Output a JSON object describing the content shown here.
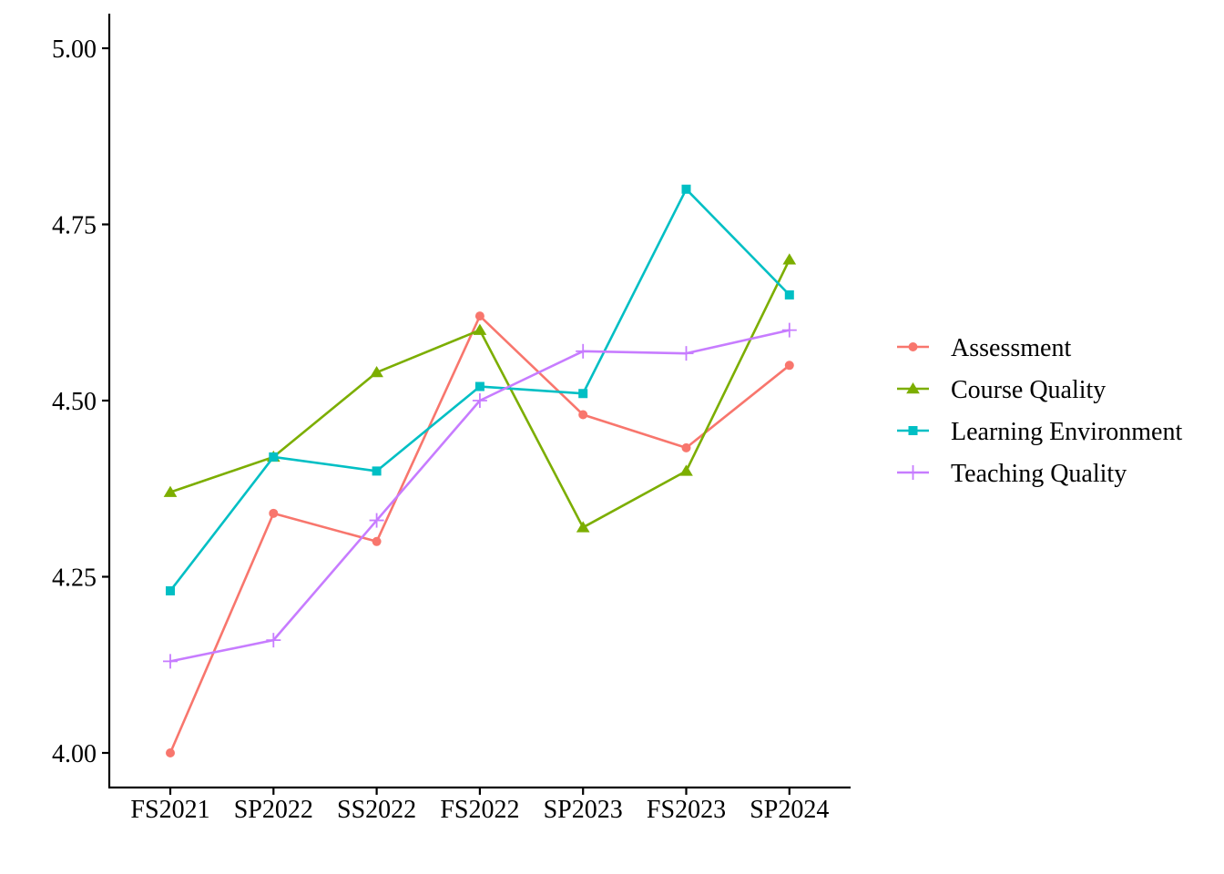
{
  "chart_data": {
    "type": "line",
    "title": "",
    "xlabel": "",
    "ylabel": "",
    "categories": [
      "FS2021",
      "SP2022",
      "SS2022",
      "FS2022",
      "SP2023",
      "FS2023",
      "SP2024"
    ],
    "ylim": [
      3.95,
      5.05
    ],
    "y_ticks": [
      4.0,
      4.25,
      4.5,
      4.75,
      5.0
    ],
    "y_tick_labels": [
      "4.00",
      "4.25",
      "4.50",
      "4.75",
      "5.00"
    ],
    "grid": false,
    "legend_position": "right",
    "series": [
      {
        "name": "Assessment",
        "color": "#F8766D",
        "marker": "circle",
        "values": [
          4.0,
          4.34,
          4.3,
          4.62,
          4.48,
          4.433,
          4.55
        ]
      },
      {
        "name": "Course Quality",
        "color": "#7CAE00",
        "marker": "triangle",
        "values": [
          4.37,
          4.42,
          4.54,
          4.6,
          4.32,
          4.4,
          4.7
        ]
      },
      {
        "name": "Learning Environment",
        "color": "#00BFC4",
        "marker": "square",
        "values": [
          4.23,
          4.42,
          4.4,
          4.52,
          4.51,
          4.8,
          4.65
        ]
      },
      {
        "name": "Teaching Quality",
        "color": "#C77CFF",
        "marker": "plus",
        "values": [
          4.13,
          4.16,
          4.33,
          4.5,
          4.57,
          4.567,
          4.6
        ]
      }
    ]
  }
}
